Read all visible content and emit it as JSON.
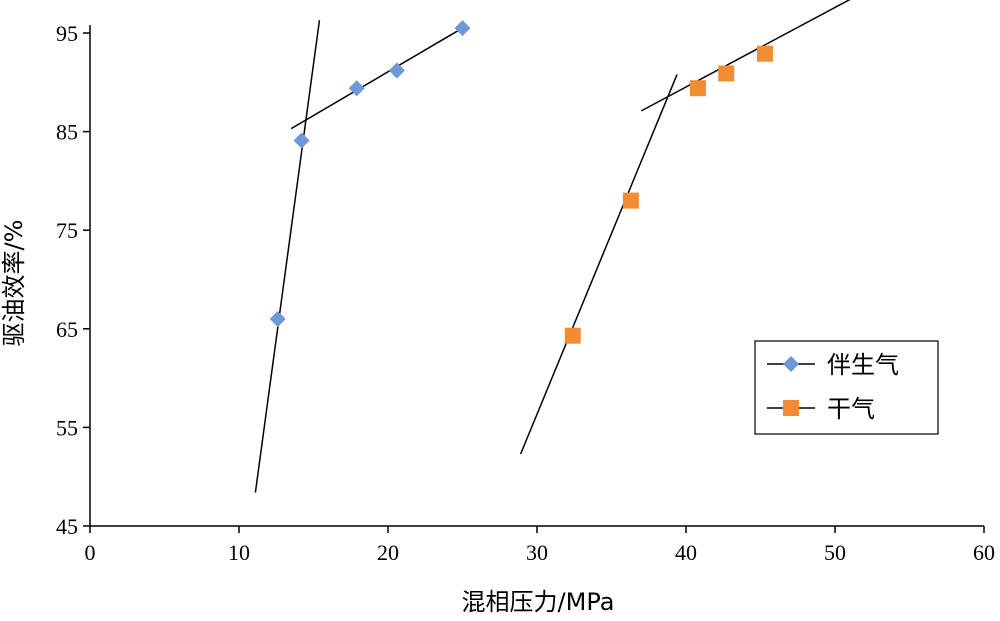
{
  "chart_data": {
    "type": "scatter",
    "xlabel": "混相压力/MPa",
    "ylabel": "驱油效率/%",
    "xlim": [
      0,
      60
    ],
    "ylim": [
      45,
      95
    ],
    "xticks": [
      0,
      10,
      20,
      30,
      40,
      50,
      60
    ],
    "yticks": [
      45,
      55,
      65,
      75,
      85,
      95
    ],
    "grid": false,
    "legend_position": "bottom-right",
    "series": [
      {
        "name": "伴生气",
        "marker": "diamond",
        "color": "#6f98d8",
        "points": [
          {
            "x": 12.6,
            "y": 66.0
          },
          {
            "x": 14.2,
            "y": 84.1
          },
          {
            "x": 17.9,
            "y": 89.4
          },
          {
            "x": 20.6,
            "y": 91.2
          },
          {
            "x": 25.0,
            "y": 95.5
          }
        ]
      },
      {
        "name": "干气",
        "marker": "square",
        "color": "#f28c34",
        "points": [
          {
            "x": 32.4,
            "y": 64.3
          },
          {
            "x": 36.3,
            "y": 78.0
          },
          {
            "x": 40.8,
            "y": 89.4
          },
          {
            "x": 42.7,
            "y": 90.9
          },
          {
            "x": 45.3,
            "y": 92.9
          }
        ]
      }
    ],
    "trend_lines": [
      {
        "x1": 11.1,
        "y1": 48.4,
        "x2": 15.4,
        "y2": 96.3
      },
      {
        "x1": 13.5,
        "y1": 85.3,
        "x2": 25.0,
        "y2": 95.5
      },
      {
        "x1": 28.9,
        "y1": 52.3,
        "x2": 39.4,
        "y2": 90.8
      },
      {
        "x1": 37.0,
        "y1": 87.1,
        "x2": 51.5,
        "y2": 98.8
      }
    ]
  }
}
